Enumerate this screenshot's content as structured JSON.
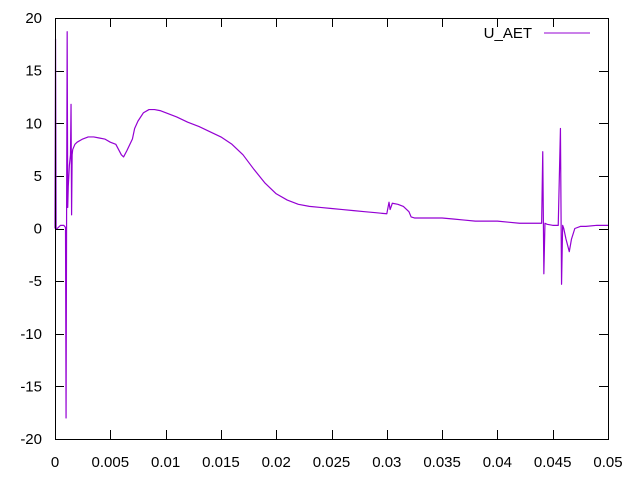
{
  "chart_data": {
    "type": "line",
    "title": "",
    "xlabel": "",
    "ylabel": "",
    "xlim": [
      0,
      0.05
    ],
    "ylim": [
      -20,
      20
    ],
    "grid": false,
    "legend_position": "top-right",
    "x_ticks": [
      {
        "value": 0,
        "label": "0"
      },
      {
        "value": 0.005,
        "label": "0.005"
      },
      {
        "value": 0.01,
        "label": "0.01"
      },
      {
        "value": 0.015,
        "label": "0.015"
      },
      {
        "value": 0.02,
        "label": "0.02"
      },
      {
        "value": 0.025,
        "label": "0.025"
      },
      {
        "value": 0.03,
        "label": "0.03"
      },
      {
        "value": 0.035,
        "label": "0.035"
      },
      {
        "value": 0.04,
        "label": "0.04"
      },
      {
        "value": 0.045,
        "label": "0.045"
      },
      {
        "value": 0.05,
        "label": "0.05"
      }
    ],
    "y_ticks": [
      {
        "value": 20,
        "label": "20"
      },
      {
        "value": 15,
        "label": "15"
      },
      {
        "value": 10,
        "label": "10"
      },
      {
        "value": 5,
        "label": "5"
      },
      {
        "value": 0,
        "label": "0"
      },
      {
        "value": -5,
        "label": "-5"
      },
      {
        "value": -10,
        "label": "-10"
      },
      {
        "value": -15,
        "label": "-15"
      },
      {
        "value": -20,
        "label": "-20"
      }
    ],
    "series": [
      {
        "name": "U_AET",
        "color": "#9400d3",
        "x": [
          0,
          5e-05,
          0.0001,
          0.0002,
          0.0005,
          0.0008,
          0.00095,
          0.001,
          0.00105,
          0.0011,
          0.00115,
          0.0012,
          0.0013,
          0.0014,
          0.00145,
          0.0015,
          0.00155,
          0.0016,
          0.0018,
          0.002,
          0.0025,
          0.003,
          0.0035,
          0.004,
          0.0045,
          0.005,
          0.0055,
          0.006,
          0.0062,
          0.0065,
          0.007,
          0.0072,
          0.0075,
          0.008,
          0.0085,
          0.009,
          0.0095,
          0.01,
          0.011,
          0.012,
          0.013,
          0.014,
          0.015,
          0.016,
          0.017,
          0.018,
          0.019,
          0.02,
          0.021,
          0.022,
          0.023,
          0.024,
          0.025,
          0.026,
          0.027,
          0.028,
          0.029,
          0.03,
          0.0302,
          0.0303,
          0.0305,
          0.031,
          0.0315,
          0.032,
          0.0322,
          0.0325,
          0.033,
          0.034,
          0.035,
          0.036,
          0.037,
          0.038,
          0.039,
          0.04,
          0.041,
          0.042,
          0.043,
          0.044,
          0.0441,
          0.0442,
          0.0443,
          0.0445,
          0.045,
          0.0455,
          0.0457,
          0.0458,
          0.0459,
          0.046,
          0.0462,
          0.0465,
          0.0467,
          0.047,
          0.0475,
          0.048,
          0.049,
          0.05
        ],
        "values": [
          0,
          18,
          0,
          0,
          0.3,
          0.3,
          0.1,
          -18,
          2,
          18.7,
          2,
          4,
          6,
          7,
          11.8,
          1.3,
          7,
          7.5,
          8,
          8.2,
          8.5,
          8.7,
          8.7,
          8.6,
          8.5,
          8.2,
          8,
          7,
          6.8,
          7.4,
          8.5,
          9.5,
          10.2,
          11,
          11.3,
          11.3,
          11.2,
          11,
          10.6,
          10.1,
          9.7,
          9.2,
          8.7,
          8,
          7,
          5.6,
          4.3,
          3.3,
          2.7,
          2.3,
          2.1,
          2,
          1.9,
          1.8,
          1.7,
          1.6,
          1.5,
          1.4,
          2.5,
          1.8,
          2.4,
          2.3,
          2.1,
          1.6,
          1.1,
          1,
          1,
          1,
          1,
          0.9,
          0.8,
          0.7,
          0.7,
          0.7,
          0.6,
          0.5,
          0.5,
          0.5,
          7.3,
          -4.3,
          0.5,
          0.4,
          0.3,
          0.3,
          9.5,
          -5.3,
          0.3,
          0,
          -1,
          -2.2,
          -1,
          0,
          0.2,
          0.2,
          0.3,
          0.3
        ]
      }
    ]
  }
}
